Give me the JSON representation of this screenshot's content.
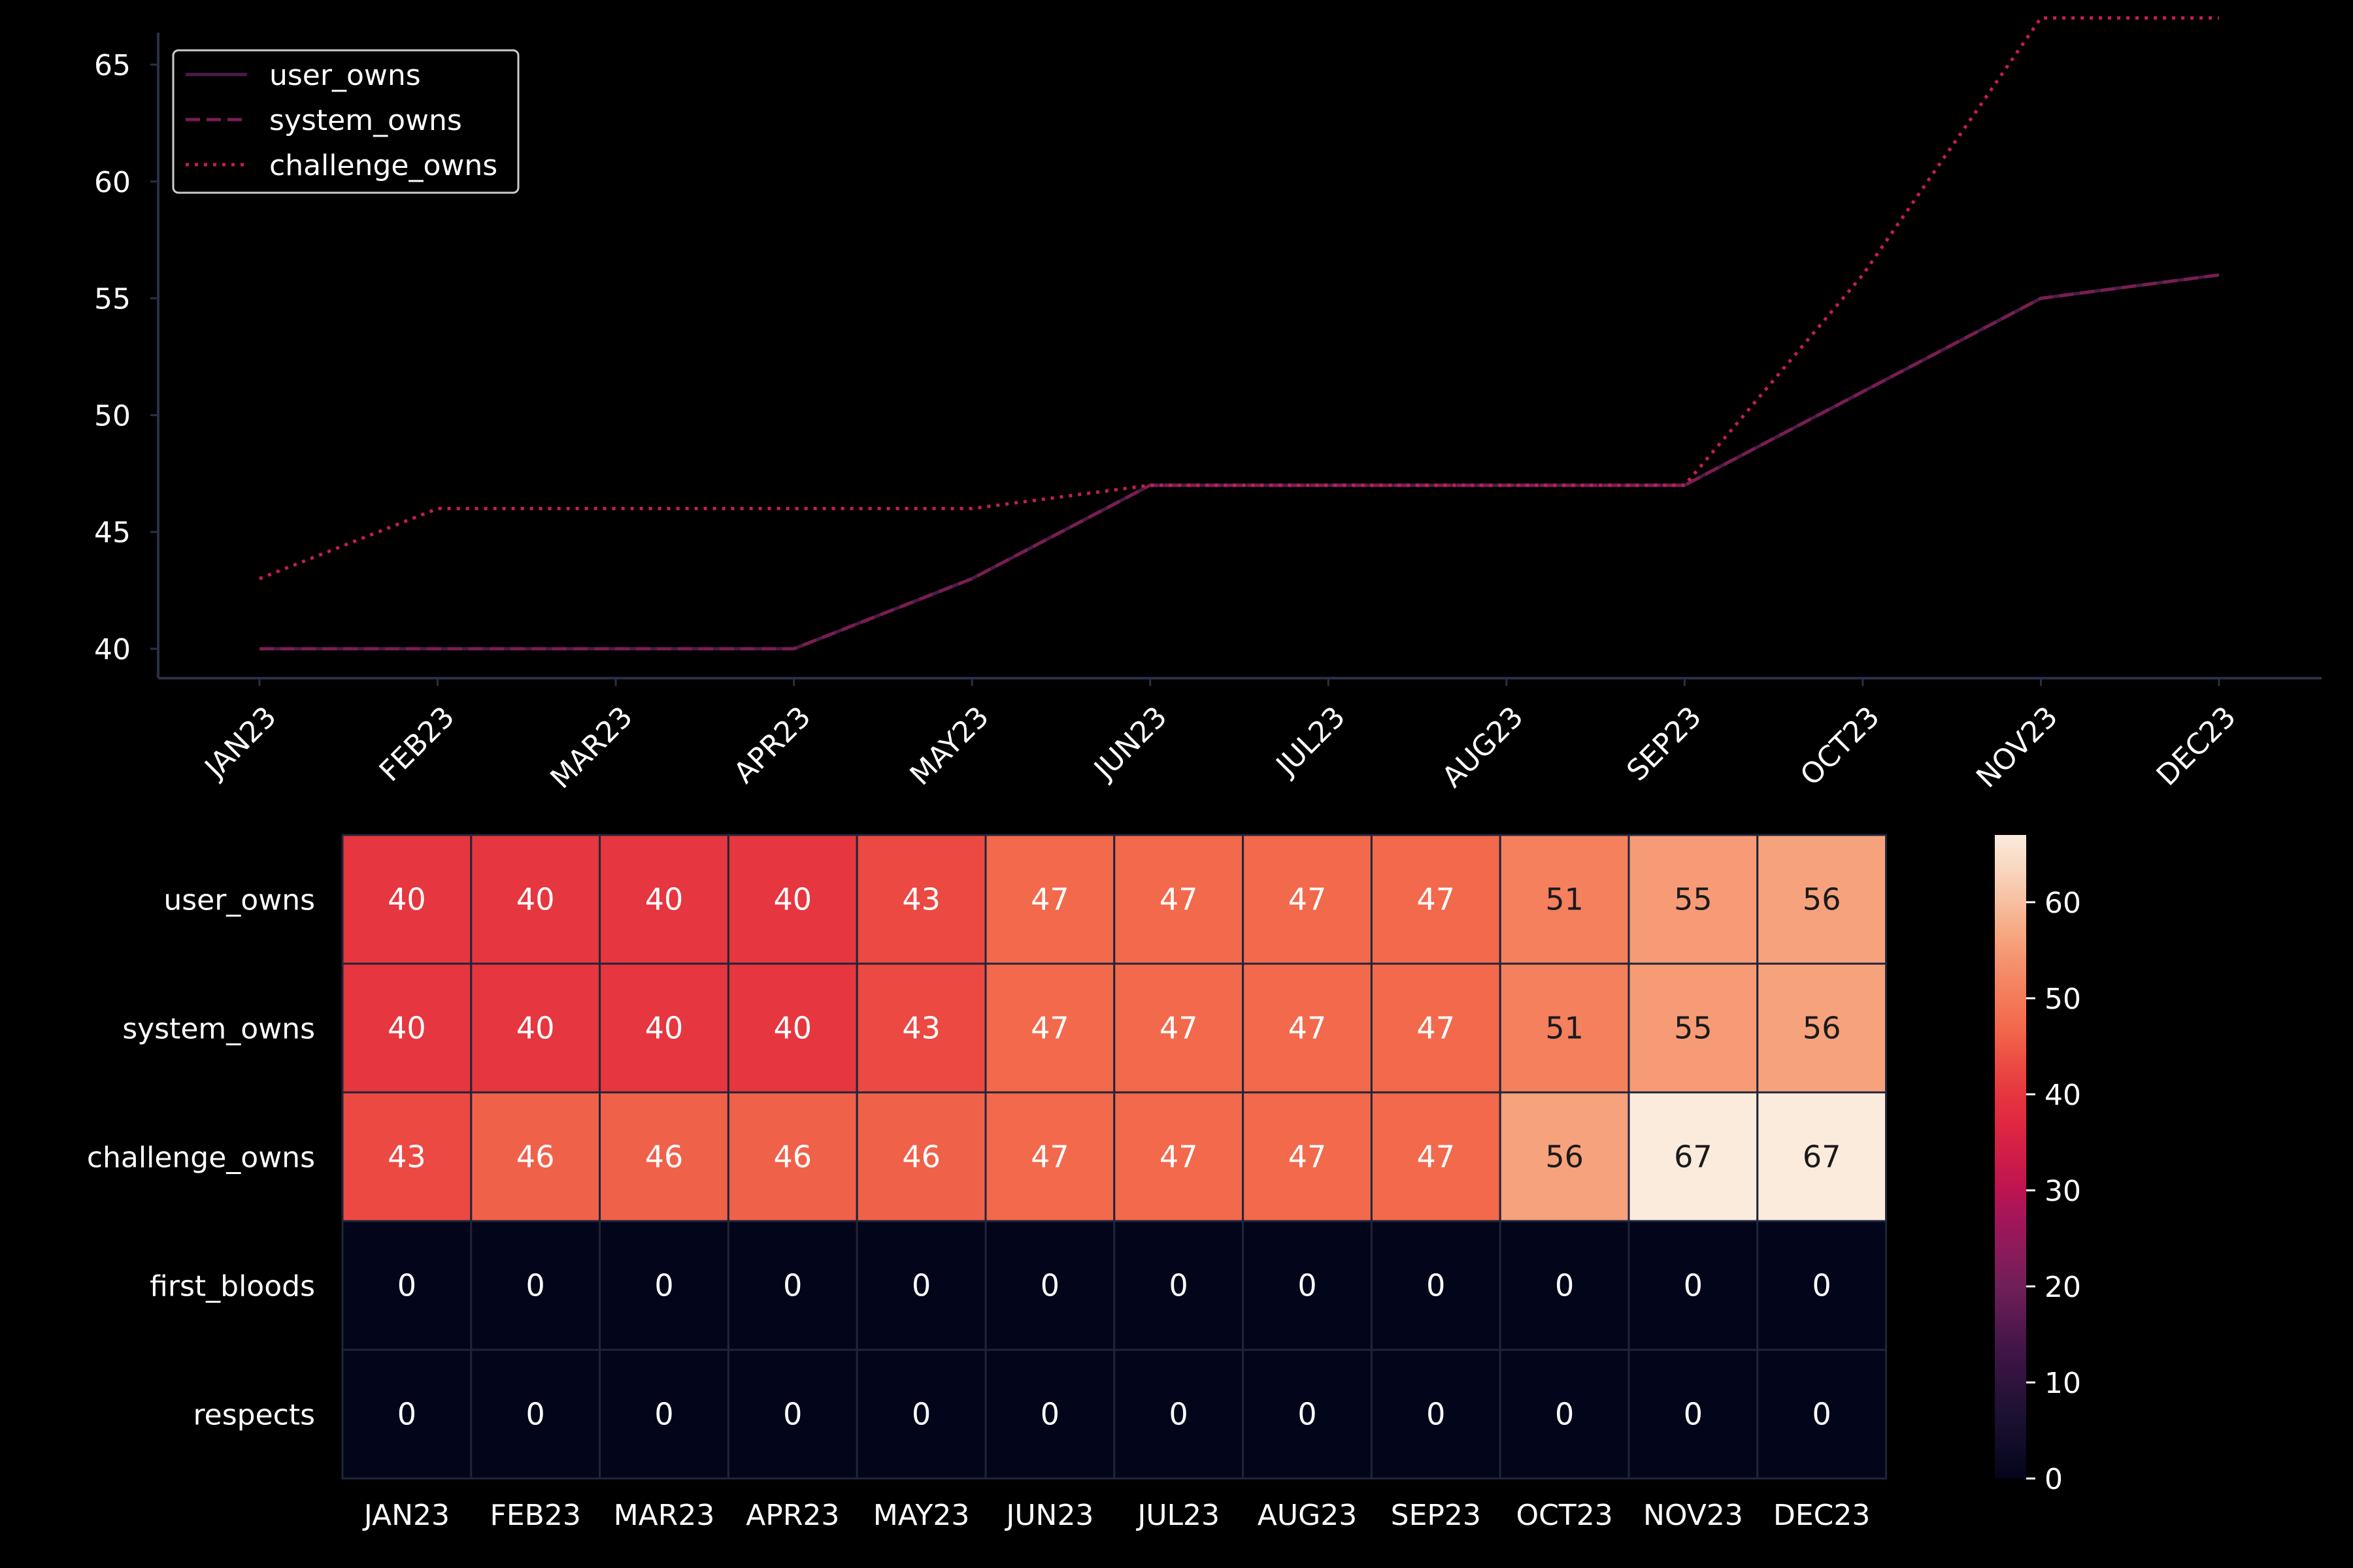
{
  "chart_data": [
    {
      "type": "line",
      "categories": [
        "JAN23",
        "FEB23",
        "MAR23",
        "APR23",
        "MAY23",
        "JUN23",
        "JUL23",
        "AUG23",
        "SEP23",
        "OCT23",
        "NOV23",
        "DEC23"
      ],
      "series": [
        {
          "name": "user_owns",
          "style": "solid",
          "color": "#4a1c48",
          "values": [
            40,
            40,
            40,
            40,
            43,
            47,
            47,
            47,
            47,
            51,
            55,
            56
          ]
        },
        {
          "name": "system_owns",
          "style": "dashed",
          "color": "#7a1d52",
          "values": [
            40,
            40,
            40,
            40,
            43,
            47,
            47,
            47,
            47,
            51,
            55,
            56
          ]
        },
        {
          "name": "challenge_owns",
          "style": "dotted",
          "color": "#c51f4f",
          "values": [
            43,
            46,
            46,
            46,
            46,
            47,
            47,
            47,
            47,
            56,
            67,
            67
          ]
        }
      ],
      "yticks": [
        40,
        45,
        50,
        55,
        60,
        65
      ],
      "ylim": [
        39.65,
        68.35
      ],
      "title": "",
      "xlabel": "",
      "ylabel": "",
      "legend": "top-left",
      "grid": false
    },
    {
      "type": "heatmap",
      "columns": [
        "JAN23",
        "FEB23",
        "MAR23",
        "APR23",
        "MAY23",
        "JUN23",
        "JUL23",
        "AUG23",
        "SEP23",
        "OCT23",
        "NOV23",
        "DEC23"
      ],
      "rows": [
        "user_owns",
        "system_owns",
        "challenge_owns",
        "first_bloods",
        "respects"
      ],
      "values": [
        [
          40,
          40,
          40,
          40,
          43,
          47,
          47,
          47,
          47,
          51,
          55,
          56
        ],
        [
          40,
          40,
          40,
          40,
          43,
          47,
          47,
          47,
          47,
          51,
          55,
          56
        ],
        [
          43,
          46,
          46,
          46,
          46,
          47,
          47,
          47,
          47,
          56,
          67,
          67
        ],
        [
          0,
          0,
          0,
          0,
          0,
          0,
          0,
          0,
          0,
          0,
          0,
          0
        ],
        [
          0,
          0,
          0,
          0,
          0,
          0,
          0,
          0,
          0,
          0,
          0,
          0
        ]
      ],
      "annotated": true,
      "colormap": "rocket",
      "colorbar": {
        "min": 0,
        "max": 67,
        "ticks": [
          0,
          10,
          20,
          30,
          40,
          50,
          60
        ]
      }
    }
  ]
}
